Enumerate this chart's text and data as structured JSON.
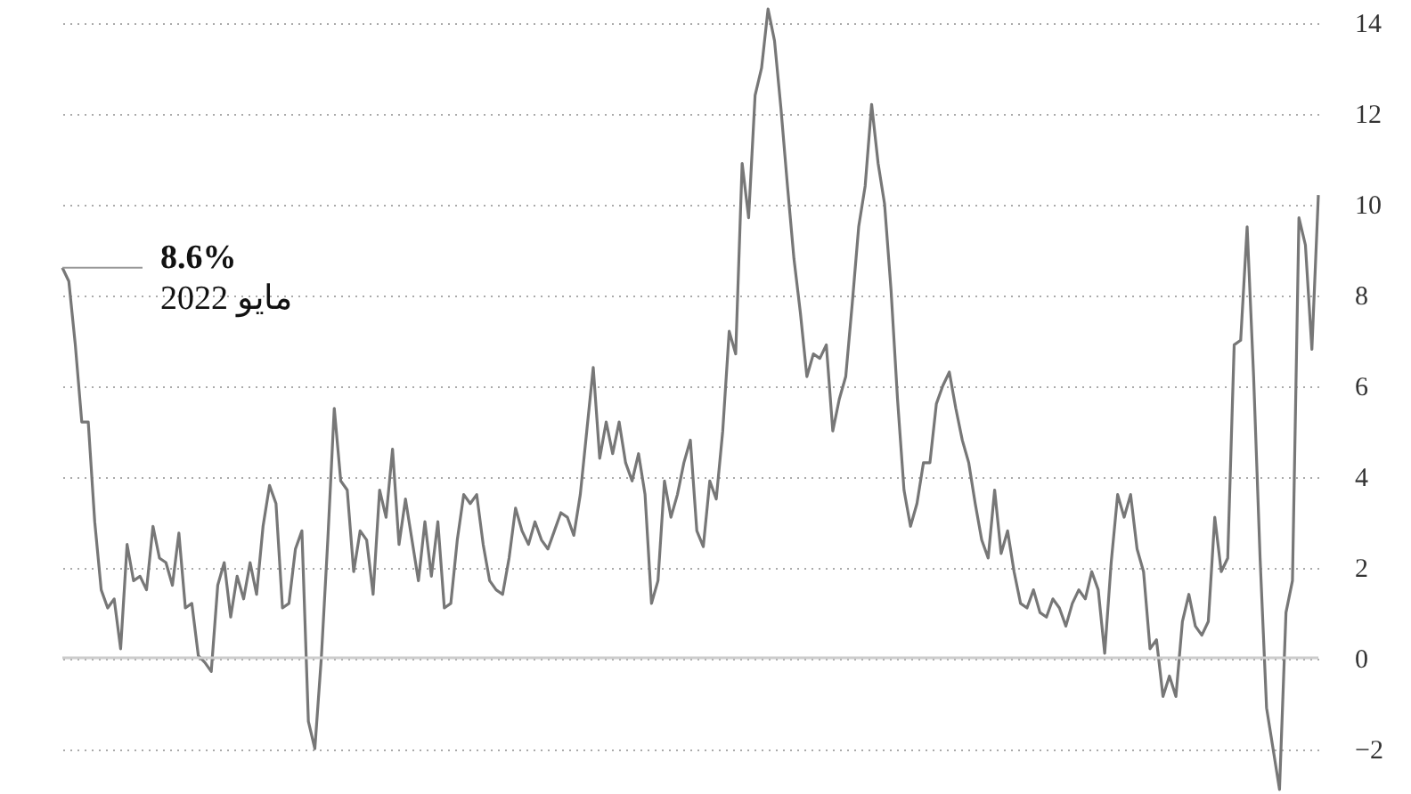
{
  "chart_data": {
    "type": "line",
    "values": [
      8.6,
      8.3,
      6.9,
      5.2,
      5.2,
      3.0,
      1.5,
      1.1,
      1.3,
      0.2,
      2.5,
      1.7,
      1.8,
      1.5,
      2.9,
      2.2,
      2.1,
      1.6,
      2.75,
      1.1,
      1.2,
      0.05,
      -0.1,
      -0.3,
      1.6,
      2.1,
      0.9,
      1.8,
      1.3,
      2.1,
      1.4,
      2.9,
      3.8,
      3.4,
      1.1,
      1.2,
      2.4,
      2.8,
      -1.4,
      -2.0,
      0.0,
      2.6,
      5.5,
      3.9,
      3.7,
      1.9,
      2.8,
      2.6,
      1.4,
      3.7,
      3.1,
      4.6,
      2.5,
      3.5,
      2.6,
      1.7,
      3.0,
      1.8,
      3.0,
      1.1,
      1.2,
      2.6,
      3.6,
      3.4,
      3.6,
      2.5,
      1.7,
      1.5,
      1.4,
      2.2,
      3.3,
      2.8,
      2.5,
      3.0,
      2.6,
      2.4,
      2.8,
      3.2,
      3.1,
      2.7,
      3.6,
      5.0,
      6.4,
      4.4,
      5.2,
      4.5,
      5.2,
      4.3,
      3.9,
      4.5,
      3.6,
      1.2,
      1.7,
      3.9,
      3.1,
      3.6,
      4.3,
      4.8,
      2.8,
      2.45,
      3.9,
      3.5,
      5.0,
      7.2,
      6.7,
      10.9,
      9.7,
      12.4,
      13.0,
      14.3,
      13.6,
      12.1,
      10.4,
      8.8,
      7.6,
      6.2,
      6.7,
      6.6,
      6.9,
      5.0,
      5.7,
      6.2,
      7.8,
      9.5,
      10.4,
      12.2,
      10.9,
      10.0,
      8.1,
      5.7,
      3.7,
      2.9,
      3.4,
      4.3,
      4.3,
      5.6,
      6.0,
      6.3,
      5.5,
      4.8,
      4.3,
      3.4,
      2.6,
      2.2,
      3.7,
      2.3,
      2.8,
      1.9,
      1.2,
      1.1,
      1.5,
      1.0,
      0.9,
      1.3,
      1.1,
      0.7,
      1.2,
      1.5,
      1.3,
      1.9,
      1.5,
      0.1,
      2.1,
      3.6,
      3.1,
      3.6,
      2.4,
      1.9,
      0.2,
      0.4,
      -0.85,
      -0.4,
      -0.85,
      0.8,
      1.4,
      0.7,
      0.5,
      0.8,
      3.1,
      1.9,
      2.2,
      6.9,
      7.0,
      9.5,
      6.2,
      2.2,
      -1.1,
      -2.0,
      -2.9,
      1.0,
      1.7,
      9.7,
      9.1,
      6.8,
      10.2
    ],
    "color": "#777777",
    "ylim": [
      -3,
      14.5
    ],
    "yticks": [
      -2,
      0,
      2,
      4,
      6,
      8,
      10,
      12,
      14
    ],
    "grid": "y",
    "ref_lines": [
      {
        "axis": "y",
        "value": 0,
        "color": "#cccccc"
      }
    ],
    "annotations": [
      "8.6%",
      "مايو 2022"
    ],
    "tick_labels": "y"
  }
}
